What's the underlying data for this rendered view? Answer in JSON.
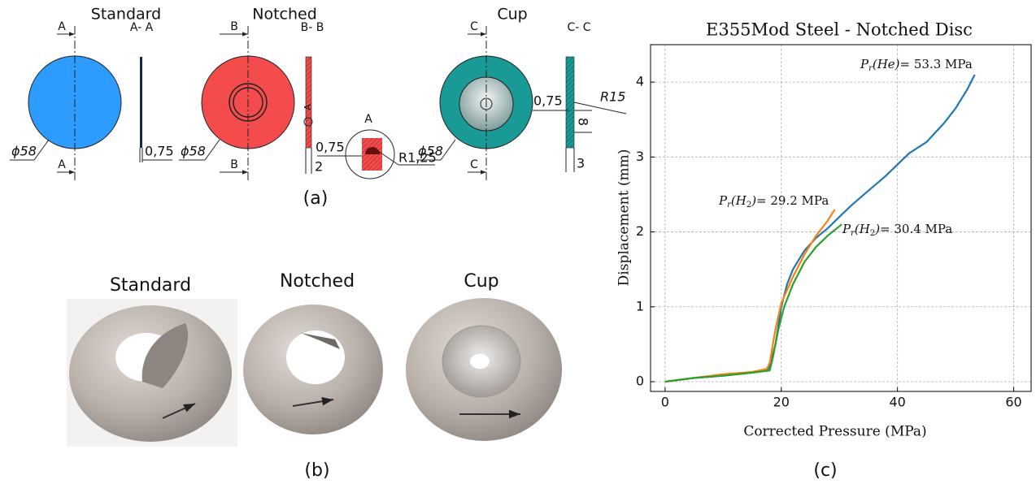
{
  "panel_a": {
    "label": "(a)",
    "standard": {
      "title": "Standard",
      "section_top": "A",
      "section_bottom": "A",
      "section_view": "A- A",
      "diameter": "ϕ58",
      "thickness": "0,75"
    },
    "notched": {
      "title": "Notched",
      "section_top": "B",
      "section_bottom": "B",
      "section_view": "B- B",
      "diameter": "ϕ58",
      "detail_marker": "A",
      "thickness": "2",
      "detail": {
        "title": "A",
        "depth": "0,75",
        "radius": "R1,25"
      }
    },
    "cup": {
      "title": "Cup",
      "section_top": "C",
      "section_bottom": "C",
      "section_view": "C- C",
      "diameter": "ϕ58",
      "depth": "0,75",
      "radius": "R15",
      "height": "8",
      "thickness": "3"
    }
  },
  "panel_b": {
    "label": "(b)",
    "photos": [
      "Standard",
      "Notched",
      "Cup"
    ]
  },
  "chart_data": {
    "type": "line",
    "title": "E355Mod Steel - Notched Disc",
    "panel_label": "(c)",
    "x_label": "Corrected Pressure (MPa)",
    "y_label": "Displacement (mm)",
    "xlim": [
      -2.5,
      63
    ],
    "ylim": [
      -0.13,
      4.5
    ],
    "xticks": [
      0,
      20,
      40,
      60
    ],
    "yticks": [
      0,
      1,
      2,
      3,
      4
    ],
    "grid": true,
    "series": [
      {
        "color": "#1f77b4",
        "x": [
          0,
          5,
          10,
          15,
          17.5,
          18,
          19,
          20,
          21,
          22,
          24,
          26,
          28,
          30,
          32,
          35,
          38,
          40,
          42,
          45,
          48,
          50,
          52,
          53.3
        ],
        "values": [
          0,
          0.05,
          0.08,
          0.12,
          0.15,
          0.2,
          0.5,
          1.0,
          1.3,
          1.5,
          1.75,
          1.92,
          2.05,
          2.2,
          2.35,
          2.55,
          2.75,
          2.9,
          3.05,
          3.2,
          3.45,
          3.65,
          3.9,
          4.1
        ]
      },
      {
        "color": "#ff7f0e",
        "x": [
          0,
          5,
          10,
          15,
          17.5,
          18,
          19,
          20,
          22,
          24,
          26,
          28,
          29.2
        ],
        "values": [
          0,
          0.05,
          0.1,
          0.13,
          0.17,
          0.25,
          0.7,
          1.05,
          1.4,
          1.7,
          1.95,
          2.15,
          2.3
        ]
      },
      {
        "color": "#2ca02c",
        "x": [
          0,
          5,
          10,
          15,
          18,
          18.5,
          19.5,
          20.5,
          22,
          24,
          26,
          28,
          30.4
        ],
        "values": [
          0,
          0.05,
          0.08,
          0.12,
          0.15,
          0.3,
          0.7,
          1.0,
          1.3,
          1.6,
          1.8,
          1.95,
          2.1
        ]
      }
    ],
    "annotations": [
      {
        "parts": [
          "P",
          "r",
          "(He)",
          "= 53.3 MPa"
        ]
      },
      {
        "parts": [
          "P",
          "r",
          "(H",
          "2",
          ")",
          "= 29.2 MPa"
        ]
      },
      {
        "parts": [
          "P",
          "r",
          "(H",
          "2",
          ")",
          "= 30.4 MPa"
        ]
      }
    ]
  }
}
